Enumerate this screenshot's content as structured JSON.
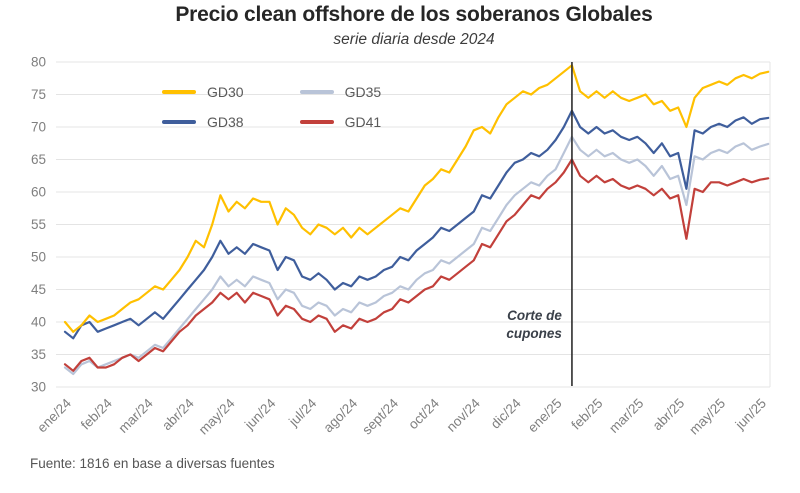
{
  "chart_data": {
    "type": "line",
    "title": "Precio clean offshore de los soberanos Globales",
    "subtitle": "serie diaria desde 2024",
    "source": "Fuente: 1816 en base a diversas fuentes",
    "xlabel": "",
    "ylabel": "",
    "ylim": [
      30,
      80
    ],
    "y_tick_step": 5,
    "y_ticks": [
      30,
      35,
      40,
      45,
      50,
      55,
      60,
      65,
      70,
      75,
      80
    ],
    "grid": "horizontal",
    "legend_position": "top-left-inside",
    "x_tick_labels": [
      "ene/24",
      "feb/24",
      "mar/24",
      "abr/24",
      "may/24",
      "jun/24",
      "jul/24",
      "ago/24",
      "sept/24",
      "oct/24",
      "nov/24",
      "dic/24",
      "ene/25",
      "feb/25",
      "mar/25",
      "abr/25",
      "may/25",
      "jun/25"
    ],
    "x_unit": "months since ene/24, fractional (daily series approximated at 0.2-month steps)",
    "x_months_per_point": 0.2,
    "annotation": {
      "lines": [
        "Corte de",
        "cupones"
      ],
      "x_month": 12.4,
      "line_color": "#2d2d2d"
    },
    "axis_text_color": "#7f7f7f",
    "gridline_color": "#e4e4e4",
    "draw_order": [
      "GD35",
      "GD41",
      "GD38",
      "GD30"
    ],
    "series": [
      {
        "name": "GD30",
        "color": "#FFC000",
        "values": [
          40,
          38.5,
          39.5,
          41,
          40,
          40.5,
          41,
          42,
          43,
          43.5,
          44.5,
          45.5,
          45,
          46.5,
          48,
          50,
          52.5,
          51.5,
          55,
          59.5,
          57,
          58.5,
          57.5,
          59,
          58.5,
          58.5,
          55,
          57.5,
          56.5,
          54.5,
          53.5,
          55,
          54.5,
          53.5,
          54.5,
          53,
          54.5,
          53.5,
          54.5,
          55.5,
          56.5,
          57.5,
          57,
          59,
          61,
          62,
          63.5,
          63,
          65,
          67,
          69.5,
          70,
          69,
          71.5,
          73.5,
          74.5,
          75.5,
          75,
          76,
          76.5,
          77.5,
          78.5,
          79.5,
          75.5,
          74.5,
          75.5,
          74.5,
          75.5,
          74.5,
          74,
          74.5,
          75,
          73.5,
          74,
          72.5,
          73,
          70,
          74.5,
          76,
          76.5,
          77,
          76.5,
          77.5,
          78,
          77.5,
          78.2,
          78.5
        ]
      },
      {
        "name": "GD35",
        "color": "#B9C4D8",
        "values": [
          33,
          32,
          33.5,
          34,
          33,
          33.5,
          34,
          34.5,
          35,
          34.5,
          35.5,
          36.5,
          36,
          37.5,
          39,
          40.5,
          42,
          43.5,
          45,
          47,
          45.5,
          46.5,
          45.5,
          47,
          46.5,
          46,
          43.5,
          45,
          44.5,
          42.5,
          42,
          43,
          42.5,
          41,
          42,
          41.5,
          43,
          42.5,
          43,
          44,
          44.5,
          45.5,
          45,
          46.5,
          47.5,
          48,
          49.5,
          49,
          50,
          51,
          52,
          54.5,
          54,
          56,
          58,
          59.5,
          60.5,
          61.5,
          61,
          62.5,
          63.5,
          66,
          68.5,
          66.5,
          65.5,
          66.5,
          65.5,
          66,
          65,
          64.5,
          65,
          64,
          62.5,
          64,
          62,
          62.5,
          58,
          65.5,
          65,
          66,
          66.5,
          66,
          67,
          67.5,
          66.5,
          67,
          67.4
        ]
      },
      {
        "name": "GD38",
        "color": "#3F5E9C",
        "values": [
          38.5,
          37.5,
          39.5,
          40,
          38.5,
          39,
          39.5,
          40,
          40.5,
          39.5,
          40.5,
          41.5,
          40.5,
          42,
          43.5,
          45,
          46.5,
          48,
          50,
          52.5,
          50.5,
          51.5,
          50.5,
          52,
          51.5,
          51,
          48,
          50,
          49.5,
          47,
          46.5,
          47.5,
          46.5,
          45,
          46,
          45.5,
          47,
          46.5,
          47,
          48,
          48.5,
          50,
          49.5,
          51,
          52,
          53,
          54.5,
          54,
          55,
          56,
          57,
          59.5,
          59,
          61,
          63,
          64.5,
          65,
          66,
          65.5,
          66.5,
          68,
          70,
          72.5,
          70,
          69,
          70,
          69,
          69.5,
          68.5,
          68,
          68.5,
          67.5,
          66,
          67.5,
          65.5,
          66,
          60.5,
          69.5,
          69,
          70,
          70.5,
          70,
          71,
          71.5,
          70.5,
          71.2,
          71.4
        ]
      },
      {
        "name": "GD41",
        "color": "#C2403B",
        "values": [
          33.5,
          32.5,
          34,
          34.5,
          33,
          33,
          33.5,
          34.5,
          35,
          34,
          35,
          36,
          35.5,
          37,
          38.5,
          39.5,
          41,
          42,
          43,
          44.5,
          43.5,
          44.5,
          43,
          44.5,
          44,
          43.5,
          41,
          42.5,
          42,
          40.5,
          40,
          41,
          40.5,
          38.5,
          39.5,
          39,
          40.5,
          40,
          40.5,
          41.5,
          42,
          43.5,
          43,
          44,
          45,
          45.5,
          47,
          46.5,
          47.5,
          48.5,
          49.5,
          52,
          51.5,
          53.5,
          55.5,
          56.5,
          58,
          59.5,
          59,
          60.5,
          61.5,
          63,
          65,
          62.5,
          61.5,
          62.5,
          61.5,
          62,
          61,
          60.5,
          61,
          60.5,
          59.5,
          60.5,
          59,
          59.5,
          52.8,
          60.5,
          60,
          61.5,
          61.5,
          61,
          61.5,
          62,
          61.5,
          61.9,
          62.1
        ]
      }
    ]
  }
}
